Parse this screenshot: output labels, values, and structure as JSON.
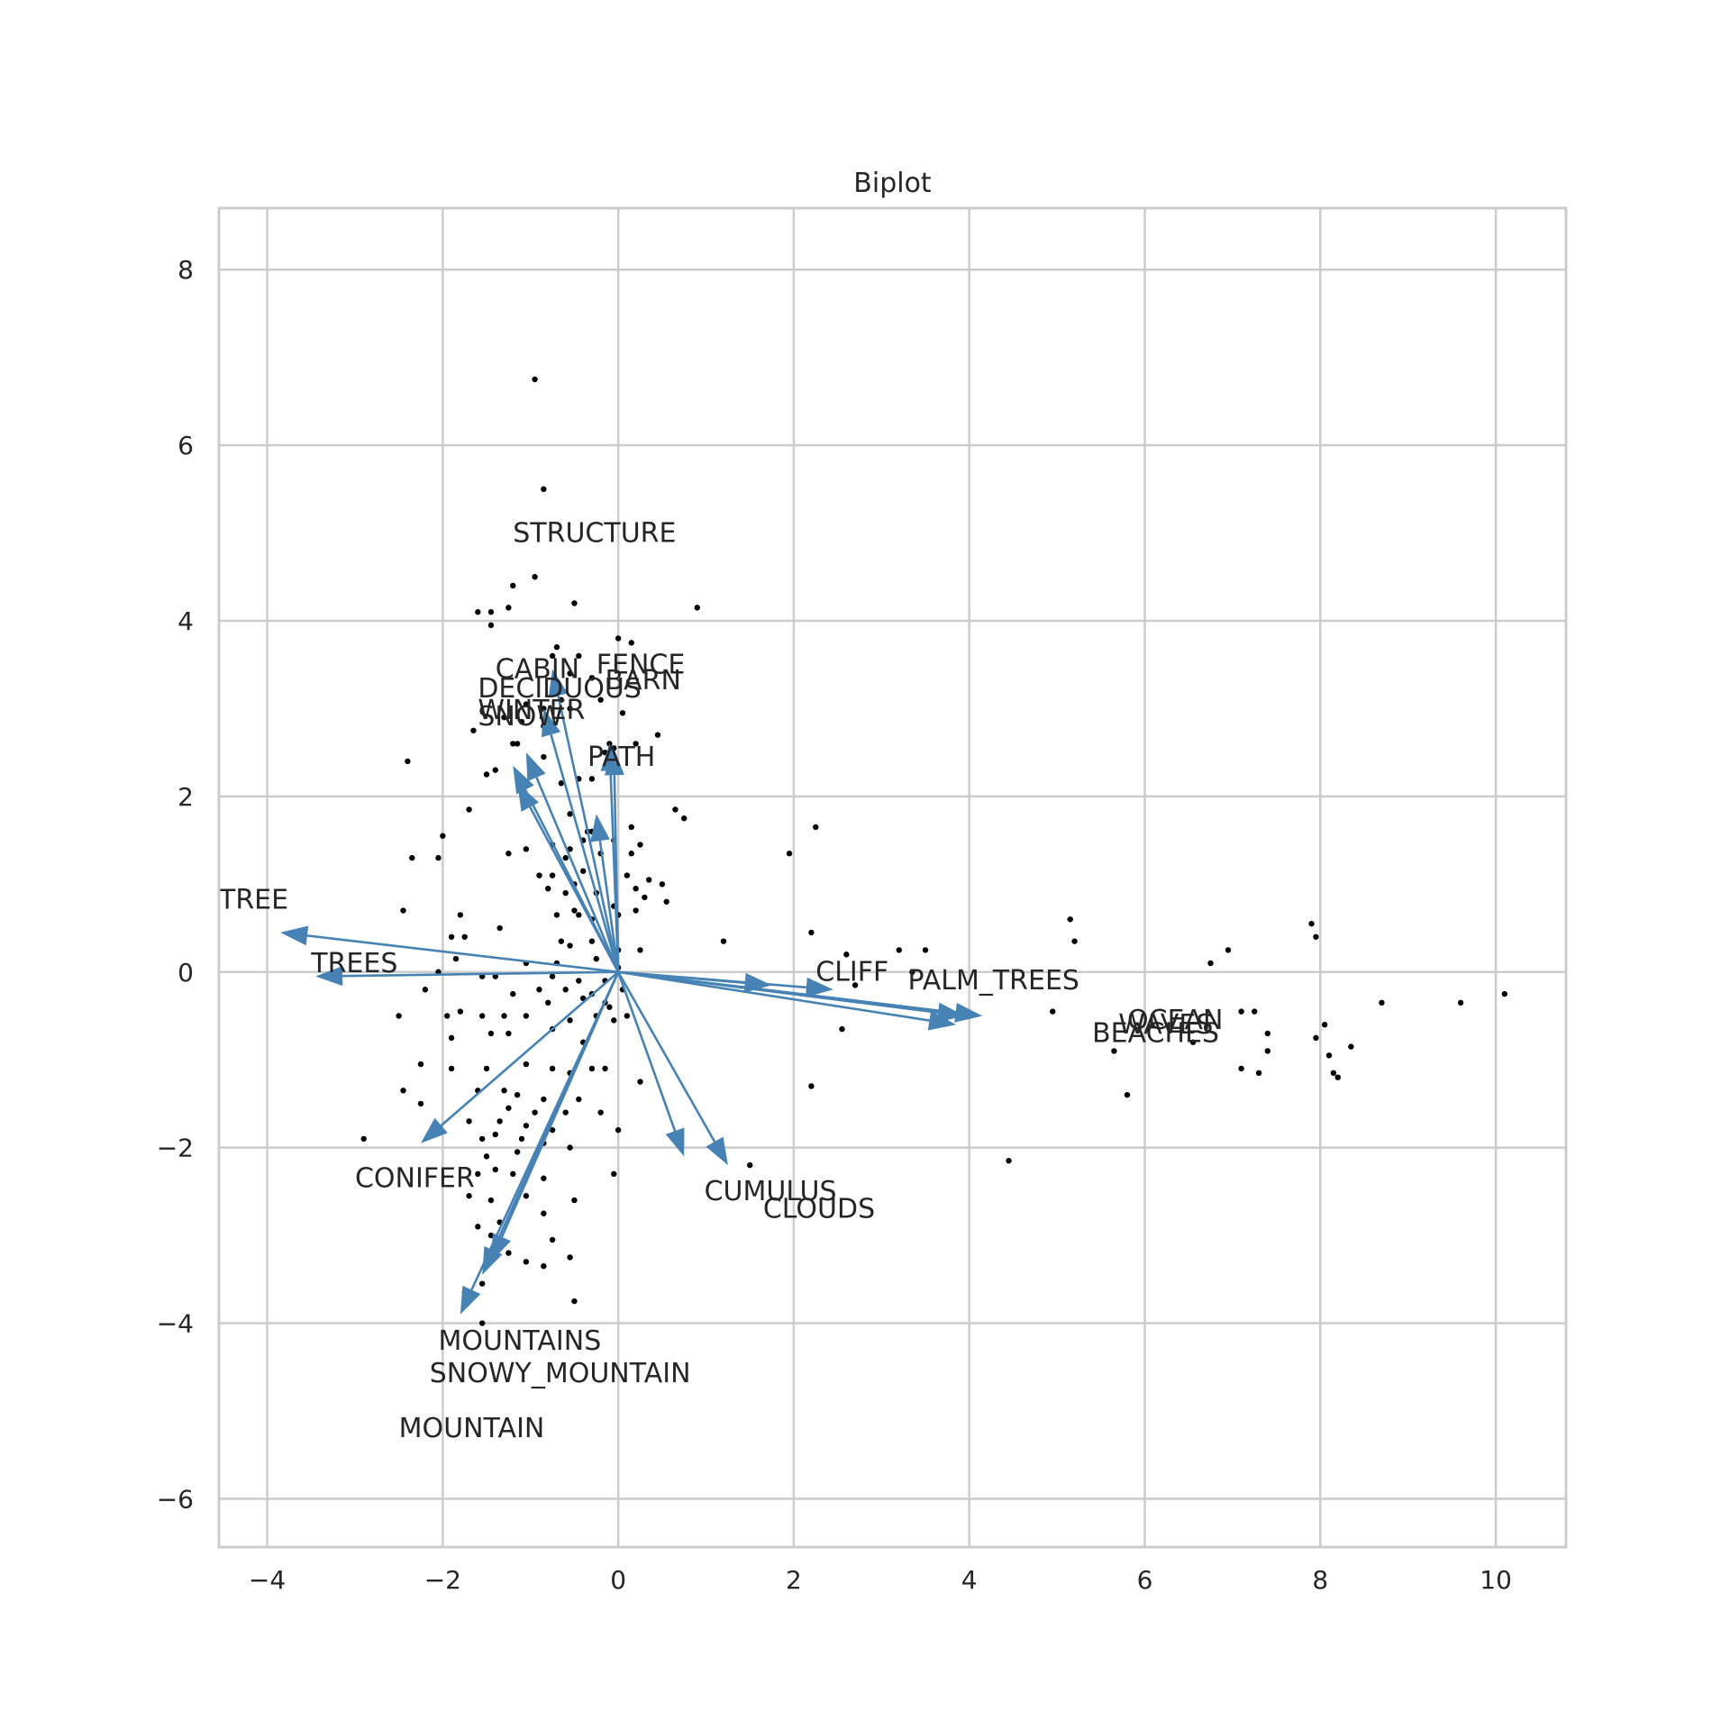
{
  "chart_data": {
    "type": "biplot",
    "title": "Biplot",
    "xlabel": "",
    "ylabel": "",
    "xlim": [
      -4.55,
      10.8
    ],
    "ylim": [
      -6.55,
      8.7
    ],
    "xticks": [
      -4,
      -2,
      0,
      2,
      4,
      6,
      8,
      10
    ],
    "yticks": [
      -6,
      -4,
      -2,
      0,
      2,
      4,
      6,
      8
    ],
    "grid": true,
    "arrow_color": "#4682b4",
    "point_color": "#000000",
    "vectors": [
      {
        "name": "TREE",
        "x": -3.85,
        "y": 0.45,
        "label_x": -4.55,
        "label_y": 0.72
      },
      {
        "name": "TREES",
        "x": -3.45,
        "y": -0.05,
        "label_x": -3.5,
        "label_y": 0.0
      },
      {
        "name": "STRUCTURE",
        "x": -0.75,
        "y": 3.45,
        "label_x": -1.2,
        "label_y": 4.9
      },
      {
        "name": "CABIN",
        "x": -0.85,
        "y": 3.0,
        "label_x": -1.4,
        "label_y": 3.35
      },
      {
        "name": "FENCE",
        "x": -0.1,
        "y": 2.6,
        "label_x": -0.25,
        "label_y": 3.4
      },
      {
        "name": "BARN",
        "x": -0.05,
        "y": 2.55,
        "label_x": -0.15,
        "label_y": 3.22
      },
      {
        "name": "DECIDUOUS",
        "x": -1.05,
        "y": 2.5,
        "label_x": -1.6,
        "label_y": 3.13
      },
      {
        "name": "WINTER",
        "x": -1.2,
        "y": 2.35,
        "label_x": -1.6,
        "label_y": 2.88
      },
      {
        "name": "SNOW",
        "x": -1.15,
        "y": 2.15,
        "label_x": -1.6,
        "label_y": 2.81
      },
      {
        "name": "PATH",
        "x": -0.25,
        "y": 1.8,
        "label_x": -0.35,
        "label_y": 2.35
      },
      {
        "name": "CLIFF",
        "x": 2.45,
        "y": -0.2,
        "label_x": 2.25,
        "label_y": -0.1
      },
      {
        "name": "PALM_TREES",
        "x": 4.15,
        "y": -0.5,
        "label_x": 3.3,
        "label_y": -0.2
      },
      {
        "name": "OCEAN",
        "x": 3.95,
        "y": -0.5,
        "label_x": 5.8,
        "label_y": -0.65
      },
      {
        "name": "WAVES",
        "x": 3.85,
        "y": -0.6,
        "label_x": 5.7,
        "label_y": -0.7
      },
      {
        "name": "BEACHES",
        "x": 1.75,
        "y": -0.15,
        "label_x": 5.4,
        "label_y": -0.8
      },
      {
        "name": "CONIFER",
        "x": -2.25,
        "y": -1.95,
        "label_x": -3.0,
        "label_y": -2.45
      },
      {
        "name": "CUMULUS",
        "x": 0.75,
        "y": -2.1,
        "label_x": 0.98,
        "label_y": -2.6
      },
      {
        "name": "CLOUDS",
        "x": 1.25,
        "y": -2.2,
        "label_x": 1.65,
        "label_y": -2.8
      },
      {
        "name": "MOUNTAINS",
        "x": -1.55,
        "y": -3.45,
        "label_x": -2.05,
        "label_y": -4.3
      },
      {
        "name": "SNOWY_MOUNTAIN",
        "x": -1.45,
        "y": -3.3,
        "label_x": -2.15,
        "label_y": -4.67
      },
      {
        "name": "MOUNTAIN",
        "x": -1.8,
        "y": -3.9,
        "label_x": -2.5,
        "label_y": -5.3
      }
    ],
    "points": [
      [
        -0.95,
        6.75
      ],
      [
        -0.85,
        5.5
      ],
      [
        -0.95,
        4.5
      ],
      [
        -1.2,
        4.4
      ],
      [
        -0.5,
        4.2
      ],
      [
        -1.6,
        4.1
      ],
      [
        -1.45,
        4.1
      ],
      [
        -1.25,
        4.15
      ],
      [
        0.9,
        4.15
      ],
      [
        -1.45,
        3.95
      ],
      [
        0.0,
        3.8
      ],
      [
        0.15,
        3.75
      ],
      [
        -0.7,
        3.7
      ],
      [
        -0.45,
        3.6
      ],
      [
        -0.75,
        3.6
      ],
      [
        -0.55,
        3.4
      ],
      [
        -0.3,
        3.35
      ],
      [
        -0.2,
        3.1
      ],
      [
        -0.65,
        3.1
      ],
      [
        -1.05,
        3.05
      ],
      [
        -0.85,
        3.0
      ],
      [
        -0.55,
        3.0
      ],
      [
        0.05,
        2.95
      ],
      [
        -1.3,
        2.9
      ],
      [
        -1.1,
        2.85
      ],
      [
        -1.65,
        2.75
      ],
      [
        -0.85,
        2.8
      ],
      [
        0.45,
        2.7
      ],
      [
        -1.15,
        2.6
      ],
      [
        -1.2,
        2.6
      ],
      [
        -0.1,
        2.6
      ],
      [
        0.2,
        2.6
      ],
      [
        -0.05,
        2.55
      ],
      [
        -0.15,
        2.5
      ],
      [
        -0.85,
        2.45
      ],
      [
        -2.4,
        2.4
      ],
      [
        -1.4,
        2.3
      ],
      [
        -1.5,
        2.25
      ],
      [
        -0.95,
        2.3
      ],
      [
        -1.1,
        2.15
      ],
      [
        -0.65,
        2.15
      ],
      [
        -0.3,
        2.2
      ],
      [
        -0.45,
        2.2
      ],
      [
        0.65,
        1.85
      ],
      [
        0.75,
        1.75
      ],
      [
        2.25,
        1.65
      ],
      [
        -1.7,
        1.85
      ],
      [
        -0.55,
        1.8
      ],
      [
        -0.35,
        1.6
      ],
      [
        -0.3,
        1.6
      ],
      [
        -0.2,
        1.55
      ],
      [
        0.15,
        1.65
      ],
      [
        -0.4,
        1.5
      ],
      [
        -0.05,
        1.5
      ],
      [
        -1.05,
        1.4
      ],
      [
        -0.75,
        1.45
      ],
      [
        -0.55,
        1.4
      ],
      [
        0.25,
        1.45
      ],
      [
        -0.2,
        1.35
      ],
      [
        -2.0,
        1.55
      ],
      [
        -2.35,
        1.3
      ],
      [
        -2.05,
        1.3
      ],
      [
        -1.25,
        1.35
      ],
      [
        -0.6,
        1.3
      ],
      [
        0.15,
        1.35
      ],
      [
        1.95,
        1.35
      ],
      [
        -0.9,
        1.1
      ],
      [
        -0.75,
        1.1
      ],
      [
        -0.4,
        1.15
      ],
      [
        -0.5,
        1.0
      ],
      [
        0.1,
        1.1
      ],
      [
        0.35,
        1.05
      ],
      [
        0.5,
        1.0
      ],
      [
        -0.8,
        0.95
      ],
      [
        -0.6,
        0.9
      ],
      [
        -0.25,
        0.9
      ],
      [
        0.2,
        0.95
      ],
      [
        -0.05,
        0.75
      ],
      [
        0.3,
        0.85
      ],
      [
        0.55,
        0.8
      ],
      [
        -2.45,
        0.7
      ],
      [
        -1.8,
        0.65
      ],
      [
        -1.35,
        0.5
      ],
      [
        -0.7,
        0.65
      ],
      [
        -0.5,
        0.7
      ],
      [
        -0.45,
        0.65
      ],
      [
        -0.3,
        0.6
      ],
      [
        0.0,
        0.65
      ],
      [
        0.2,
        0.7
      ],
      [
        5.15,
        0.6
      ],
      [
        2.2,
        0.45
      ],
      [
        1.2,
        0.35
      ],
      [
        5.2,
        0.35
      ],
      [
        -1.9,
        0.4
      ],
      [
        -1.75,
        0.4
      ],
      [
        -0.65,
        0.35
      ],
      [
        -0.55,
        0.3
      ],
      [
        -0.3,
        0.35
      ],
      [
        0.0,
        0.25
      ],
      [
        0.25,
        0.25
      ],
      [
        2.6,
        0.2
      ],
      [
        3.2,
        0.25
      ],
      [
        3.5,
        0.25
      ],
      [
        7.9,
        0.55
      ],
      [
        7.95,
        0.4
      ],
      [
        6.95,
        0.25
      ],
      [
        6.75,
        0.1
      ],
      [
        -1.85,
        0.15
      ],
      [
        -1.05,
        0.1
      ],
      [
        -0.7,
        0.1
      ],
      [
        -0.25,
        0.15
      ],
      [
        0.0,
        0.05
      ],
      [
        3.35,
        0.0
      ],
      [
        -2.05,
        0.0
      ],
      [
        -1.55,
        -0.05
      ],
      [
        -1.4,
        -0.05
      ],
      [
        -0.75,
        -0.05
      ],
      [
        -0.45,
        -0.1
      ],
      [
        -0.15,
        -0.1
      ],
      [
        2.25,
        -0.15
      ],
      [
        2.7,
        -0.15
      ],
      [
        -0.9,
        -0.2
      ],
      [
        -0.6,
        -0.2
      ],
      [
        -0.3,
        -0.25
      ],
      [
        0.05,
        -0.2
      ],
      [
        -2.2,
        -0.2
      ],
      [
        -1.2,
        -0.25
      ],
      [
        -0.8,
        -0.35
      ],
      [
        -0.4,
        -0.3
      ],
      [
        -0.15,
        -0.35
      ],
      [
        8.7,
        -0.35
      ],
      [
        9.6,
        -0.35
      ],
      [
        10.1,
        -0.25
      ],
      [
        7.1,
        -0.45
      ],
      [
        7.25,
        -0.45
      ],
      [
        4.95,
        -0.45
      ],
      [
        3.95,
        -0.5
      ],
      [
        -0.1,
        -0.4
      ],
      [
        -1.05,
        -0.5
      ],
      [
        -0.25,
        -0.5
      ],
      [
        -0.05,
        -0.55
      ],
      [
        0.1,
        -0.5
      ],
      [
        -2.5,
        -0.5
      ],
      [
        -1.95,
        -0.5
      ],
      [
        -1.8,
        -0.45
      ],
      [
        -1.55,
        -0.5
      ],
      [
        -1.3,
        -0.5
      ],
      [
        -0.55,
        -0.55
      ],
      [
        2.55,
        -0.65
      ],
      [
        -1.45,
        -0.7
      ],
      [
        -1.25,
        -0.7
      ],
      [
        -0.75,
        -0.65
      ],
      [
        -1.9,
        -0.75
      ],
      [
        -0.4,
        -0.8
      ],
      [
        6.55,
        -0.8
      ],
      [
        5.65,
        -0.9
      ],
      [
        7.4,
        -0.9
      ],
      [
        8.35,
        -0.85
      ],
      [
        8.05,
        -0.6
      ],
      [
        7.95,
        -0.75
      ],
      [
        7.4,
        -0.7
      ],
      [
        8.1,
        -0.95
      ],
      [
        7.1,
        -1.1
      ],
      [
        7.3,
        -1.15
      ],
      [
        8.15,
        -1.15
      ],
      [
        8.2,
        -1.2
      ],
      [
        2.2,
        -1.3
      ],
      [
        5.8,
        -1.4
      ],
      [
        0.25,
        -1.25
      ],
      [
        -1.05,
        -1.05
      ],
      [
        -1.5,
        -1.1
      ],
      [
        -2.25,
        -1.05
      ],
      [
        -1.9,
        -1.1
      ],
      [
        -0.75,
        -1.1
      ],
      [
        -0.55,
        -1.15
      ],
      [
        -0.3,
        -1.1
      ],
      [
        -0.15,
        -1.1
      ],
      [
        -2.45,
        -1.35
      ],
      [
        -1.6,
        -1.35
      ],
      [
        -1.3,
        -1.35
      ],
      [
        -1.15,
        -1.4
      ],
      [
        -0.45,
        -1.45
      ],
      [
        -0.85,
        -1.45
      ],
      [
        -2.25,
        -1.5
      ],
      [
        -1.25,
        -1.55
      ],
      [
        -0.95,
        -1.6
      ],
      [
        -0.6,
        -1.6
      ],
      [
        -0.2,
        -1.6
      ],
      [
        -1.7,
        -1.7
      ],
      [
        -1.35,
        -1.7
      ],
      [
        -1.05,
        -1.75
      ],
      [
        -0.75,
        -1.8
      ],
      [
        -2.9,
        -1.9
      ],
      [
        -1.55,
        -1.9
      ],
      [
        -1.4,
        -1.85
      ],
      [
        -1.1,
        -1.9
      ],
      [
        -0.85,
        -1.95
      ],
      [
        -1.5,
        -2.1
      ],
      [
        -1.15,
        -2.05
      ],
      [
        -0.55,
        -2.0
      ],
      [
        -1.6,
        -2.3
      ],
      [
        -1.4,
        -2.25
      ],
      [
        -1.2,
        -2.3
      ],
      [
        -0.85,
        -2.35
      ],
      [
        1.5,
        -2.2
      ],
      [
        4.45,
        -2.15
      ],
      [
        -1.7,
        -2.55
      ],
      [
        -1.45,
        -2.6
      ],
      [
        -1.05,
        -2.55
      ],
      [
        -0.5,
        -2.6
      ],
      [
        -0.85,
        -2.75
      ],
      [
        -1.35,
        -2.85
      ],
      [
        -1.6,
        -2.9
      ],
      [
        -1.45,
        -3.0
      ],
      [
        -0.75,
        -3.05
      ],
      [
        -1.25,
        -3.2
      ],
      [
        -1.05,
        -3.3
      ],
      [
        -0.85,
        -3.35
      ],
      [
        -0.55,
        -3.25
      ],
      [
        -1.55,
        -3.55
      ],
      [
        -1.75,
        -3.65
      ],
      [
        -1.75,
        -3.7
      ],
      [
        -0.5,
        -3.75
      ],
      [
        -1.55,
        -4.0
      ],
      [
        0.0,
        -1.8
      ],
      [
        -0.05,
        -2.3
      ]
    ]
  }
}
